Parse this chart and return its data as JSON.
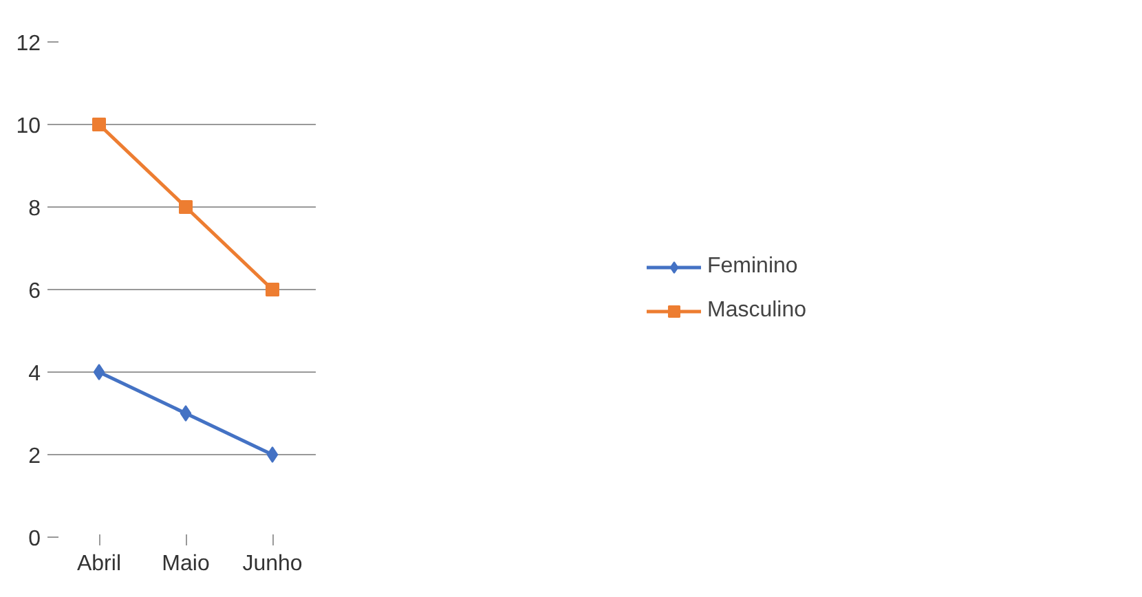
{
  "chart_data": {
    "type": "line",
    "categories": [
      "Abril",
      "Maio",
      "Junho"
    ],
    "series": [
      {
        "name": "Feminino",
        "color": "#4472c4",
        "marker": "diamond",
        "values": [
          4,
          3,
          2
        ]
      },
      {
        "name": "Masculino",
        "color": "#ed7d31",
        "marker": "square",
        "values": [
          10,
          8,
          6
        ]
      }
    ],
    "ylim": [
      0,
      12
    ],
    "yticks": [
      0,
      2,
      4,
      6,
      8,
      10,
      12
    ],
    "grid": "y",
    "legend": "right",
    "line_style": "solid"
  }
}
